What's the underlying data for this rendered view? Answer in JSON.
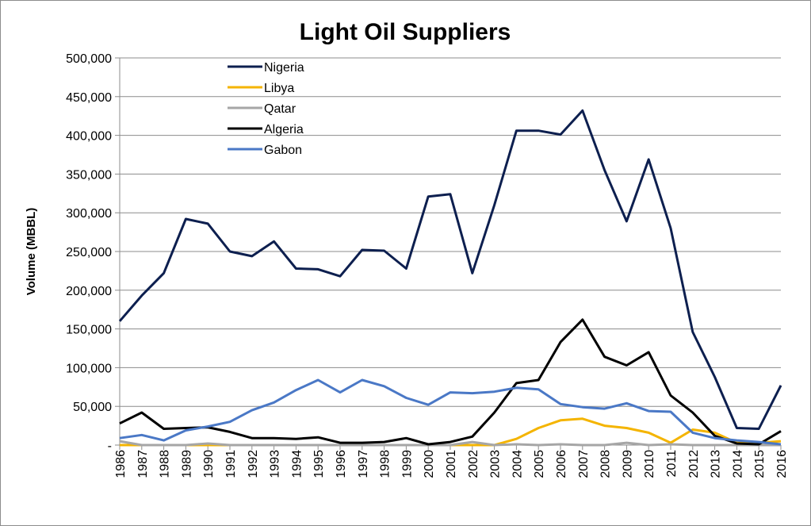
{
  "chart_data": {
    "type": "line",
    "title": "Light Oil Suppliers",
    "xlabel": "",
    "ylabel": "Volume (MBBL)",
    "ylim": [
      0,
      500000
    ],
    "yticks": [
      0,
      50000,
      100000,
      150000,
      200000,
      250000,
      300000,
      350000,
      400000,
      450000,
      500000
    ],
    "ytick_labels": [
      "-",
      "50,000",
      "100,000",
      "150,000",
      "200,000",
      "250,000",
      "300,000",
      "350,000",
      "400,000",
      "450,000",
      "500,000"
    ],
    "grid": true,
    "legend_position": "top-left",
    "x": [
      "1986",
      "1987",
      "1988",
      "1989",
      "1990",
      "1991",
      "1992",
      "1993",
      "1994",
      "1995",
      "1996",
      "1997",
      "1998",
      "1999",
      "2000",
      "2001",
      "2002",
      "2003",
      "2004",
      "2005",
      "2006",
      "2007",
      "2008",
      "2009",
      "2010",
      "2011",
      "2012",
      "2013",
      "2014",
      "2015",
      "2016"
    ],
    "series": [
      {
        "name": "Nigeria",
        "color": "#0d1f4f",
        "values": [
          160000,
          193000,
          222000,
          292000,
          286000,
          250000,
          244000,
          263000,
          228000,
          227000,
          218000,
          252000,
          251000,
          228000,
          321000,
          324000,
          222000,
          310000,
          406000,
          406000,
          401000,
          432000,
          355000,
          289000,
          369000,
          280000,
          146000,
          88000,
          22000,
          21000,
          77000
        ]
      },
      {
        "name": "Libya",
        "color": "#f4b400",
        "values": [
          0,
          0,
          0,
          0,
          0,
          0,
          0,
          0,
          0,
          0,
          0,
          0,
          0,
          0,
          0,
          0,
          0,
          0,
          8000,
          22000,
          32000,
          34000,
          25000,
          22000,
          16000,
          3000,
          20000,
          16000,
          3000,
          3000,
          5000
        ]
      },
      {
        "name": "Qatar",
        "color": "#a6a6a6",
        "values": [
          5000,
          0,
          0,
          0,
          2000,
          0,
          0,
          0,
          0,
          0,
          0,
          0,
          0,
          0,
          0,
          0,
          4000,
          0,
          1000,
          0,
          1000,
          0,
          0,
          3000,
          0,
          1000,
          0,
          0,
          0,
          0,
          0
        ]
      },
      {
        "name": "Algeria",
        "color": "#000000",
        "values": [
          28000,
          42000,
          21000,
          22000,
          23000,
          17000,
          9000,
          9000,
          8000,
          10000,
          3000,
          3000,
          4000,
          9000,
          1000,
          4000,
          11000,
          42000,
          80000,
          84000,
          133000,
          162000,
          114000,
          103000,
          120000,
          64000,
          42000,
          12000,
          2000,
          1000,
          18000
        ]
      },
      {
        "name": "Gabon",
        "color": "#4a78c6",
        "values": [
          9000,
          13000,
          6000,
          19000,
          24000,
          30000,
          45000,
          55000,
          71000,
          84000,
          68000,
          84000,
          76000,
          61000,
          52000,
          68000,
          67000,
          69000,
          74000,
          72000,
          53000,
          49000,
          47000,
          54000,
          44000,
          43000,
          16000,
          9000,
          6000,
          4000,
          1000
        ]
      }
    ]
  }
}
